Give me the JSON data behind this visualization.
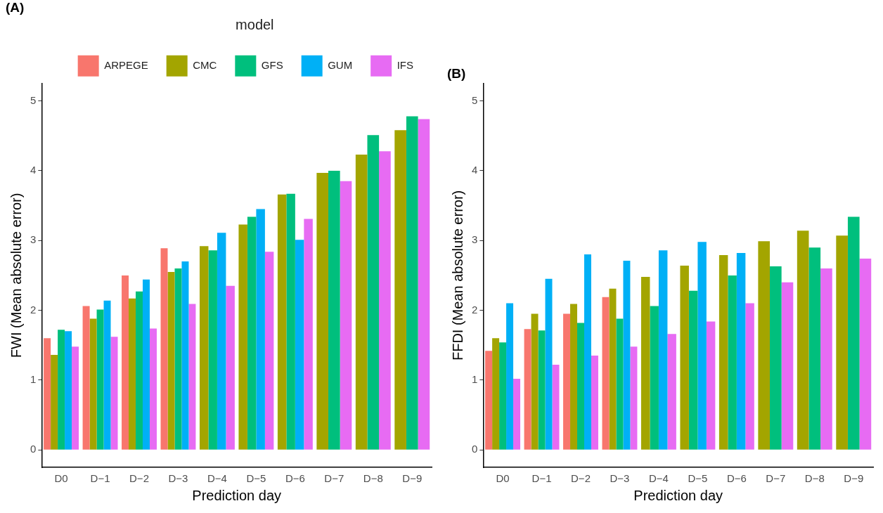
{
  "chart_data": [
    {
      "type": "bar",
      "title": "(A)",
      "xlabel": "Prediction day",
      "ylabel": "FWI (Mean absolute error)",
      "legend_title": "model",
      "legend": "top",
      "categories": [
        "D0",
        "D−1",
        "D−2",
        "D−3",
        "D−4",
        "D−5",
        "D−6",
        "D−7",
        "D−8",
        "D−9"
      ],
      "ylim": [
        -0.25,
        5.25
      ],
      "yticks": [
        0,
        1,
        2,
        3,
        4,
        5
      ],
      "grid": false,
      "series": [
        {
          "name": "ARPEGE",
          "color": "#f8766d",
          "values": [
            1.6,
            2.06,
            2.5,
            2.89,
            null,
            null,
            null,
            null,
            null,
            null
          ]
        },
        {
          "name": "CMC",
          "color": "#a3a500",
          "values": [
            1.36,
            1.88,
            2.17,
            2.55,
            2.92,
            3.23,
            3.66,
            3.97,
            4.23,
            4.58
          ]
        },
        {
          "name": "GFS",
          "color": "#00bf7d",
          "values": [
            1.72,
            2.01,
            2.27,
            2.6,
            2.86,
            3.34,
            3.67,
            4.0,
            4.51,
            4.78
          ]
        },
        {
          "name": "GUM",
          "color": "#00b0f6",
          "values": [
            1.7,
            2.14,
            2.44,
            2.7,
            3.11,
            3.45,
            3.01,
            null,
            null,
            null
          ]
        },
        {
          "name": "IFS",
          "color": "#e76bf3",
          "values": [
            1.48,
            1.62,
            1.74,
            2.09,
            2.35,
            2.84,
            3.31,
            3.85,
            4.28,
            4.74
          ]
        }
      ]
    },
    {
      "type": "bar",
      "title": "(B)",
      "xlabel": "Prediction day",
      "ylabel": "FFDI (Mean absolute error)",
      "categories": [
        "D0",
        "D−1",
        "D−2",
        "D−3",
        "D−4",
        "D−5",
        "D−6",
        "D−7",
        "D−8",
        "D−9"
      ],
      "ylim": [
        -0.25,
        5.25
      ],
      "yticks": [
        0,
        1,
        2,
        3,
        4,
        5
      ],
      "grid": false,
      "series": [
        {
          "color": "#f8766d",
          "values": [
            1.42,
            1.73,
            1.95,
            2.19,
            null,
            null,
            null,
            null,
            null,
            null
          ]
        },
        {
          "color": "#a3a500",
          "values": [
            1.6,
            1.95,
            2.09,
            2.31,
            2.48,
            2.64,
            2.79,
            2.99,
            3.14,
            3.07
          ]
        },
        {
          "color": "#00bf7d",
          "values": [
            1.54,
            1.71,
            1.82,
            1.88,
            2.06,
            2.28,
            2.5,
            2.63,
            2.9,
            3.34
          ]
        },
        {
          "color": "#00b0f6",
          "values": [
            2.1,
            2.45,
            2.8,
            2.71,
            2.86,
            2.98,
            2.82,
            null,
            null,
            null
          ]
        },
        {
          "color": "#e76bf3",
          "values": [
            1.02,
            1.22,
            1.35,
            1.48,
            1.66,
            1.84,
            2.1,
            2.4,
            2.6,
            2.74
          ]
        }
      ]
    }
  ]
}
